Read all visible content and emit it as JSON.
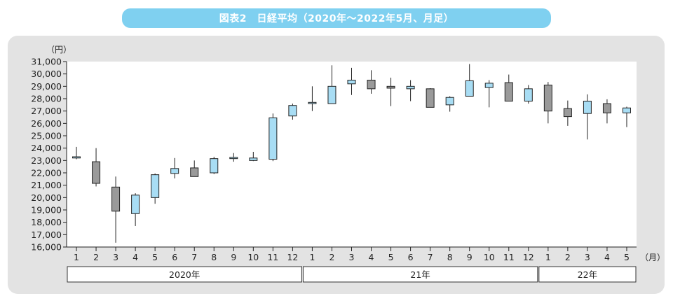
{
  "header": {
    "title": "図表2　日経平均（2020年～2022年5月、月足）"
  },
  "colors": {
    "title_bg": "#7fd0f0",
    "panel_bg": "#e3e3e3",
    "up": "#a8ddf4",
    "down": "#9a9a9a",
    "wick": "#222222"
  },
  "chart_data": {
    "type": "candlestick",
    "title": "図表2　日経平均（2020年～2022年5月、月足）",
    "y_unit": "（円）",
    "x_unit": "（月）",
    "ylim": [
      16000,
      31000
    ],
    "y_ticks": [
      "16,000",
      "17,000",
      "18,000",
      "19,000",
      "20,000",
      "21,000",
      "22,000",
      "23,000",
      "24,000",
      "25,000",
      "26,000",
      "27,000",
      "28,000",
      "29,000",
      "30,000",
      "31,000"
    ],
    "x_labels": [
      "1",
      "2",
      "3",
      "4",
      "5",
      "6",
      "7",
      "8",
      "9",
      "10",
      "11",
      "12",
      "1",
      "2",
      "3",
      "4",
      "5",
      "6",
      "7",
      "8",
      "9",
      "10",
      "11",
      "12",
      "1",
      "2",
      "3",
      "4",
      "5"
    ],
    "groups": [
      {
        "label": "2020年",
        "start": 0,
        "end": 11
      },
      {
        "label": "21年",
        "start": 12,
        "end": 23
      },
      {
        "label": "22年",
        "start": 24,
        "end": 28
      }
    ],
    "candles": [
      {
        "o": 23200,
        "h": 24100,
        "l": 23100,
        "c": 23300
      },
      {
        "o": 22900,
        "h": 24000,
        "l": 20900,
        "c": 21150
      },
      {
        "o": 20850,
        "h": 21700,
        "l": 16350,
        "c": 18900
      },
      {
        "o": 18700,
        "h": 20350,
        "l": 17700,
        "c": 20200
      },
      {
        "o": 20000,
        "h": 21950,
        "l": 19500,
        "c": 21850
      },
      {
        "o": 21950,
        "h": 23200,
        "l": 21550,
        "c": 22350
      },
      {
        "o": 22400,
        "h": 23000,
        "l": 21700,
        "c": 21700
      },
      {
        "o": 22000,
        "h": 23300,
        "l": 21900,
        "c": 23150
      },
      {
        "o": 23150,
        "h": 23600,
        "l": 22900,
        "c": 23250
      },
      {
        "o": 23000,
        "h": 23700,
        "l": 22950,
        "c": 23200
      },
      {
        "o": 23100,
        "h": 26800,
        "l": 22950,
        "c": 26450
      },
      {
        "o": 26600,
        "h": 27600,
        "l": 26300,
        "c": 27450
      },
      {
        "o": 27600,
        "h": 29000,
        "l": 27000,
        "c": 27700
      },
      {
        "o": 27600,
        "h": 30700,
        "l": 27600,
        "c": 29000
      },
      {
        "o": 29200,
        "h": 30500,
        "l": 28300,
        "c": 29500
      },
      {
        "o": 29500,
        "h": 30300,
        "l": 28400,
        "c": 28800
      },
      {
        "o": 29000,
        "h": 29700,
        "l": 27400,
        "c": 28850
      },
      {
        "o": 28800,
        "h": 29500,
        "l": 27800,
        "c": 29000
      },
      {
        "o": 28800,
        "h": 28850,
        "l": 27300,
        "c": 27300
      },
      {
        "o": 27500,
        "h": 28200,
        "l": 26950,
        "c": 28100
      },
      {
        "o": 28200,
        "h": 30800,
        "l": 28200,
        "c": 29450
      },
      {
        "o": 28900,
        "h": 29500,
        "l": 27300,
        "c": 29250
      },
      {
        "o": 29300,
        "h": 29950,
        "l": 27800,
        "c": 27800
      },
      {
        "o": 27800,
        "h": 29100,
        "l": 27600,
        "c": 28800
      },
      {
        "o": 29100,
        "h": 29350,
        "l": 26000,
        "c": 27000
      },
      {
        "o": 27200,
        "h": 27850,
        "l": 25800,
        "c": 26550
      },
      {
        "o": 26800,
        "h": 28350,
        "l": 24700,
        "c": 27800
      },
      {
        "o": 27600,
        "h": 27950,
        "l": 26000,
        "c": 26850
      },
      {
        "o": 26850,
        "h": 27350,
        "l": 25700,
        "c": 27250
      }
    ]
  }
}
